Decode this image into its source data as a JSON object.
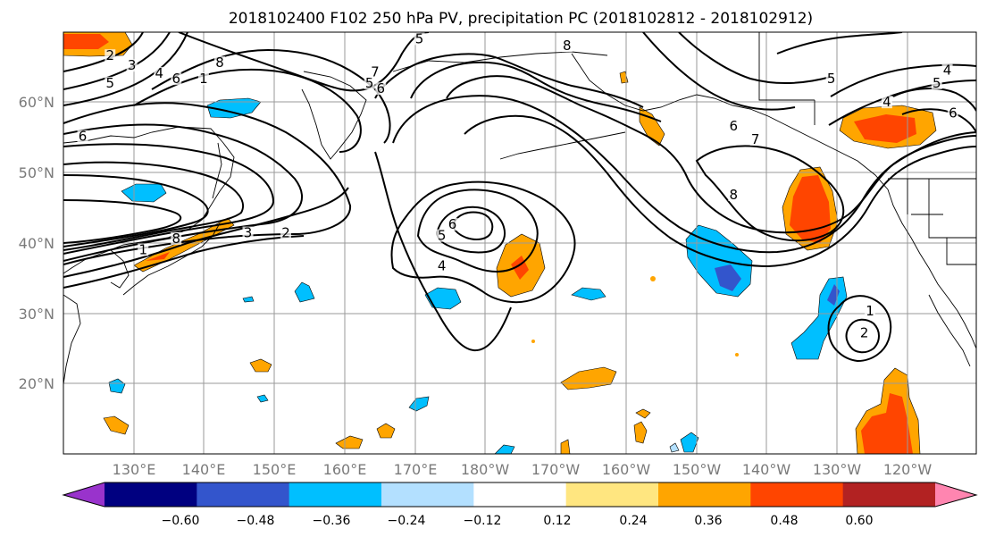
{
  "title": "2018102400 F102 250 hPa PV, precipitation PC (2018102812 - 2018102912)",
  "lat_labels": [
    "60°N",
    "50°N",
    "40°N",
    "30°N",
    "20°N"
  ],
  "lon_labels": [
    "130°E",
    "140°E",
    "150°E",
    "160°E",
    "170°E",
    "180°W",
    "170°W",
    "160°W",
    "150°W",
    "140°W",
    "130°W",
    "120°W"
  ],
  "colorbar": {
    "ticks": [
      "−0.60",
      "−0.48",
      "−0.36",
      "−0.24",
      "−0.12",
      "0.12",
      "0.24",
      "0.36",
      "0.48",
      "0.60"
    ],
    "colors": [
      "#9933cc",
      "#000080",
      "#3355cc",
      "#00bfff",
      "#b3e0ff",
      "#ffffff",
      "#ffe680",
      "#ffa500",
      "#ff4500",
      "#b22222",
      "#ff85b0"
    ]
  },
  "pv_contour_labels": [
    {
      "lon": 126.6,
      "lat": 66.2,
      "text": "2"
    },
    {
      "lon": 126.6,
      "lat": 62.3,
      "text": "5"
    },
    {
      "lon": 129.7,
      "lat": 64.8,
      "text": "3"
    },
    {
      "lon": 133.6,
      "lat": 63.7,
      "text": "4"
    },
    {
      "lon": 136.0,
      "lat": 62.9,
      "text": "6"
    },
    {
      "lon": 139.9,
      "lat": 62.9,
      "text": "1"
    },
    {
      "lon": 142.2,
      "lat": 65.2,
      "text": "8"
    },
    {
      "lon": 122.7,
      "lat": 54.7,
      "text": "6"
    },
    {
      "lon": 163.5,
      "lat": 62.3,
      "text": "5"
    },
    {
      "lon": 164.3,
      "lat": 63.9,
      "text": "7"
    },
    {
      "lon": 165.1,
      "lat": 61.5,
      "text": "6"
    },
    {
      "lon": 170.6,
      "lat": 68.6,
      "text": "5"
    },
    {
      "lon": 191.6,
      "lat": 67.6,
      "text": "8"
    },
    {
      "lon": 136.0,
      "lat": 40.2,
      "text": "8"
    },
    {
      "lon": 131.3,
      "lat": 38.6,
      "text": "1"
    },
    {
      "lon": 146.2,
      "lat": 41.0,
      "text": "3"
    },
    {
      "lon": 151.6,
      "lat": 41.0,
      "text": "2"
    },
    {
      "lon": 175.3,
      "lat": 42.2,
      "text": "6"
    },
    {
      "lon": 173.8,
      "lat": 40.6,
      "text": "5"
    },
    {
      "lon": 173.8,
      "lat": 36.3,
      "text": "4"
    },
    {
      "lon": 215.3,
      "lat": 56.2,
      "text": "6"
    },
    {
      "lon": 218.4,
      "lat": 54.3,
      "text": "7"
    },
    {
      "lon": 215.3,
      "lat": 46.4,
      "text": "8"
    },
    {
      "lon": 234.7,
      "lat": 29.9,
      "text": "1"
    },
    {
      "lon": 233.9,
      "lat": 26.8,
      "text": "2"
    },
    {
      "lon": 229.2,
      "lat": 62.9,
      "text": "5"
    },
    {
      "lon": 245.7,
      "lat": 64.1,
      "text": "4"
    },
    {
      "lon": 244.2,
      "lat": 62.3,
      "text": "5"
    },
    {
      "lon": 237.1,
      "lat": 59.6,
      "text": "4"
    },
    {
      "lon": 246.5,
      "lat": 58.0,
      "text": "6"
    }
  ]
}
